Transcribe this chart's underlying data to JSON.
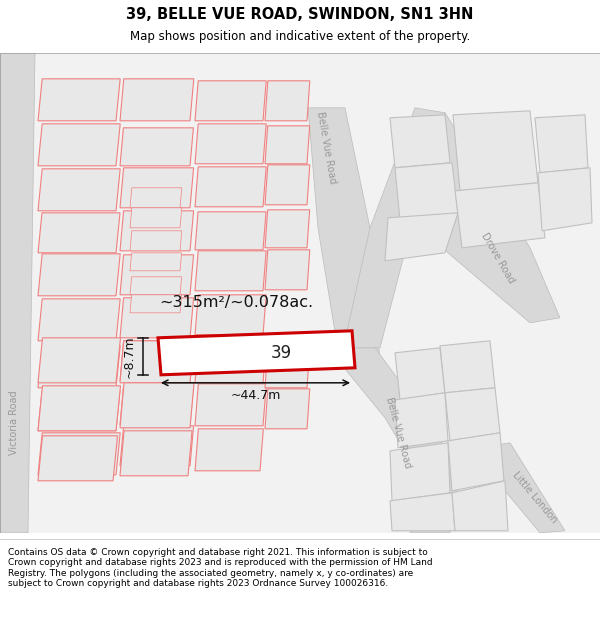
{
  "title": "39, BELLE VUE ROAD, SWINDON, SN1 3HN",
  "subtitle": "Map shows position and indicative extent of the property.",
  "footer": "Contains OS data © Crown copyright and database right 2021. This information is subject to Crown copyright and database rights 2023 and is reproduced with the permission of HM Land Registry. The polygons (including the associated geometry, namely x, y co-ordinates) are subject to Crown copyright and database rights 2023 Ordnance Survey 100026316.",
  "area_text": "~315m²/~0.078ac.",
  "width_text": "~44.7m",
  "height_text": "~8.7m",
  "number_text": "39",
  "title_fontsize": 10.5,
  "subtitle_fontsize": 8.5,
  "footer_fontsize": 6.5,
  "map_bg": "#f2f2f2",
  "plot_fill": "#e8e8e8",
  "plot_edge_red": "#f08080",
  "plot_edge_grey": "#c0c0c0",
  "road_fill": "#d8d8d8",
  "highlight_stroke": "#cc0000",
  "highlight_fill": "#ffffff",
  "dim_color": "#111111",
  "label_color": "#999999",
  "white": "#ffffff"
}
